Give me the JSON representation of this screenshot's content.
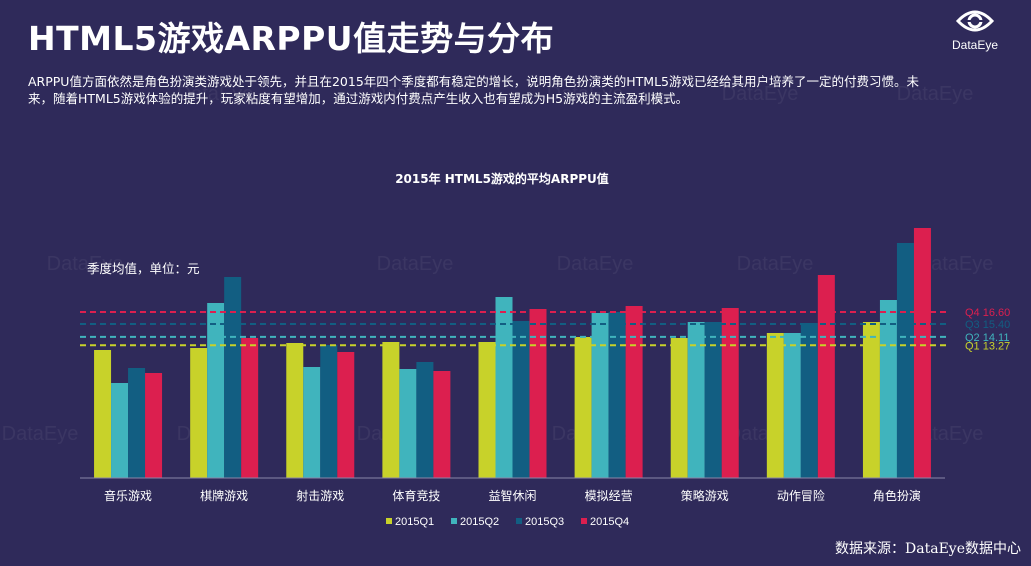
{
  "header": {
    "title": "HTML5游戏ARPPU值走势与分布",
    "description": "ARPPU值方面依然是角色扮演类游戏处于领先，并且在2015年四个季度都有稳定的增长，说明角色扮演类的HTML5游戏已经给其用户培养了一定的付费习惯。未来，随着HTML5游戏体验的提升，玩家粘度有望增加，通过游戏内付费点产生收入也有望成为H5游戏的主流盈利模式。"
  },
  "logo": {
    "name": "DataEye"
  },
  "watermark": "DataEye",
  "footer": {
    "source": "数据来源：DataEye数据中心"
  },
  "chart_data": {
    "type": "bar",
    "title": "2015年 HTML5游戏的平均ARPPU值",
    "unit_label": "季度均值，单位：元",
    "categories": [
      "音乐游戏",
      "棋牌游戏",
      "射击游戏",
      "体育竞技",
      "益智休闲",
      "模拟经营",
      "策略游戏",
      "动作冒险",
      "角色扮演"
    ],
    "series": [
      {
        "name": "2015Q1",
        "color": "#c8d22a",
        "values": [
          12.8,
          13.0,
          13.5,
          13.6,
          13.6,
          14.1,
          14.0,
          14.5,
          15.6
        ]
      },
      {
        "name": "2015Q2",
        "color": "#40b4bd",
        "values": [
          9.5,
          17.5,
          11.1,
          10.9,
          18.1,
          16.5,
          15.6,
          14.5,
          17.8
        ]
      },
      {
        "name": "2015Q3",
        "color": "#125e82",
        "values": [
          11.0,
          20.1,
          13.3,
          11.6,
          15.7,
          16.6,
          15.6,
          15.5,
          23.5
        ]
      },
      {
        "name": "2015Q4",
        "color": "#dc1f4f",
        "values": [
          10.5,
          14.0,
          12.6,
          10.7,
          16.9,
          17.2,
          17.0,
          20.3,
          25.0
        ]
      }
    ],
    "reference_lines": [
      {
        "label": "Q4 16.60",
        "value": 16.6,
        "color": "#dc1f4f"
      },
      {
        "label": "Q3 15.40",
        "value": 15.4,
        "color": "#125e82"
      },
      {
        "label": "Q2 14.11",
        "value": 14.11,
        "color": "#40b4bd"
      },
      {
        "label": "Q1 13.27",
        "value": 13.27,
        "color": "#c8d22a"
      }
    ],
    "ylim": [
      0,
      26
    ],
    "grid": false,
    "legend_position": "bottom"
  }
}
